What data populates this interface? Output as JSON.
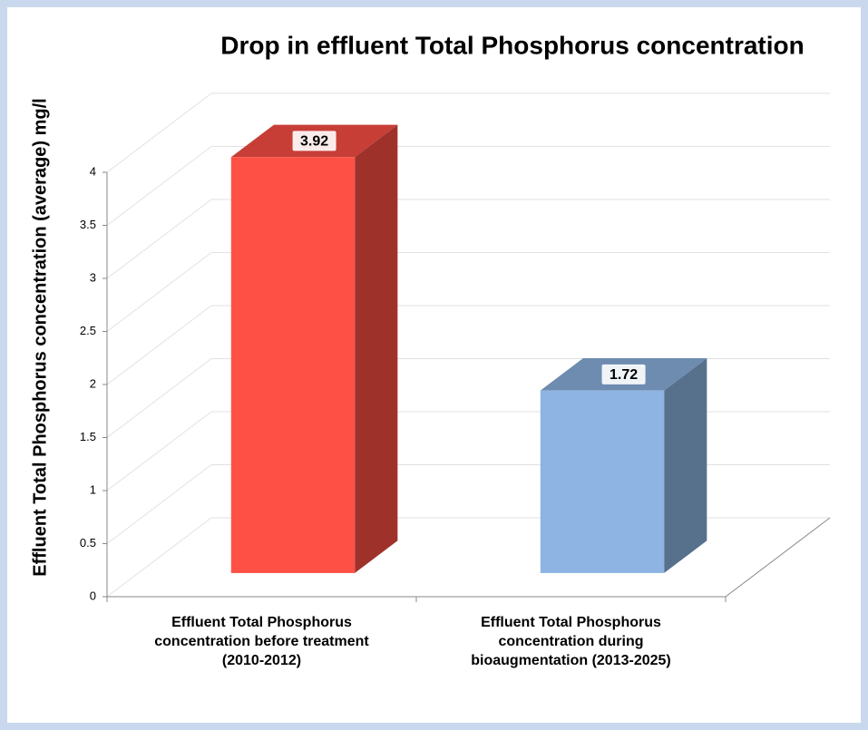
{
  "chart_data": {
    "type": "bar3d",
    "title": "Drop in effluent Total Phosphorus concentration",
    "y_axis_label": "Effluent Total Phosphorus concentration (average) mg/l",
    "categories": [
      "Effluent Total Phosphorus concentration before treatment (2010-2012)",
      "Effluent Total Phosphorus concentration during bioaugmentation (2013-2025)"
    ],
    "values": [
      3.92,
      1.72
    ],
    "colors": [
      "#ff5046",
      "#8db4e2"
    ],
    "ylim": [
      0,
      4
    ],
    "yticks": [
      0,
      0.5,
      1,
      1.5,
      2,
      2.5,
      3,
      3.5,
      4
    ],
    "grid": true
  }
}
